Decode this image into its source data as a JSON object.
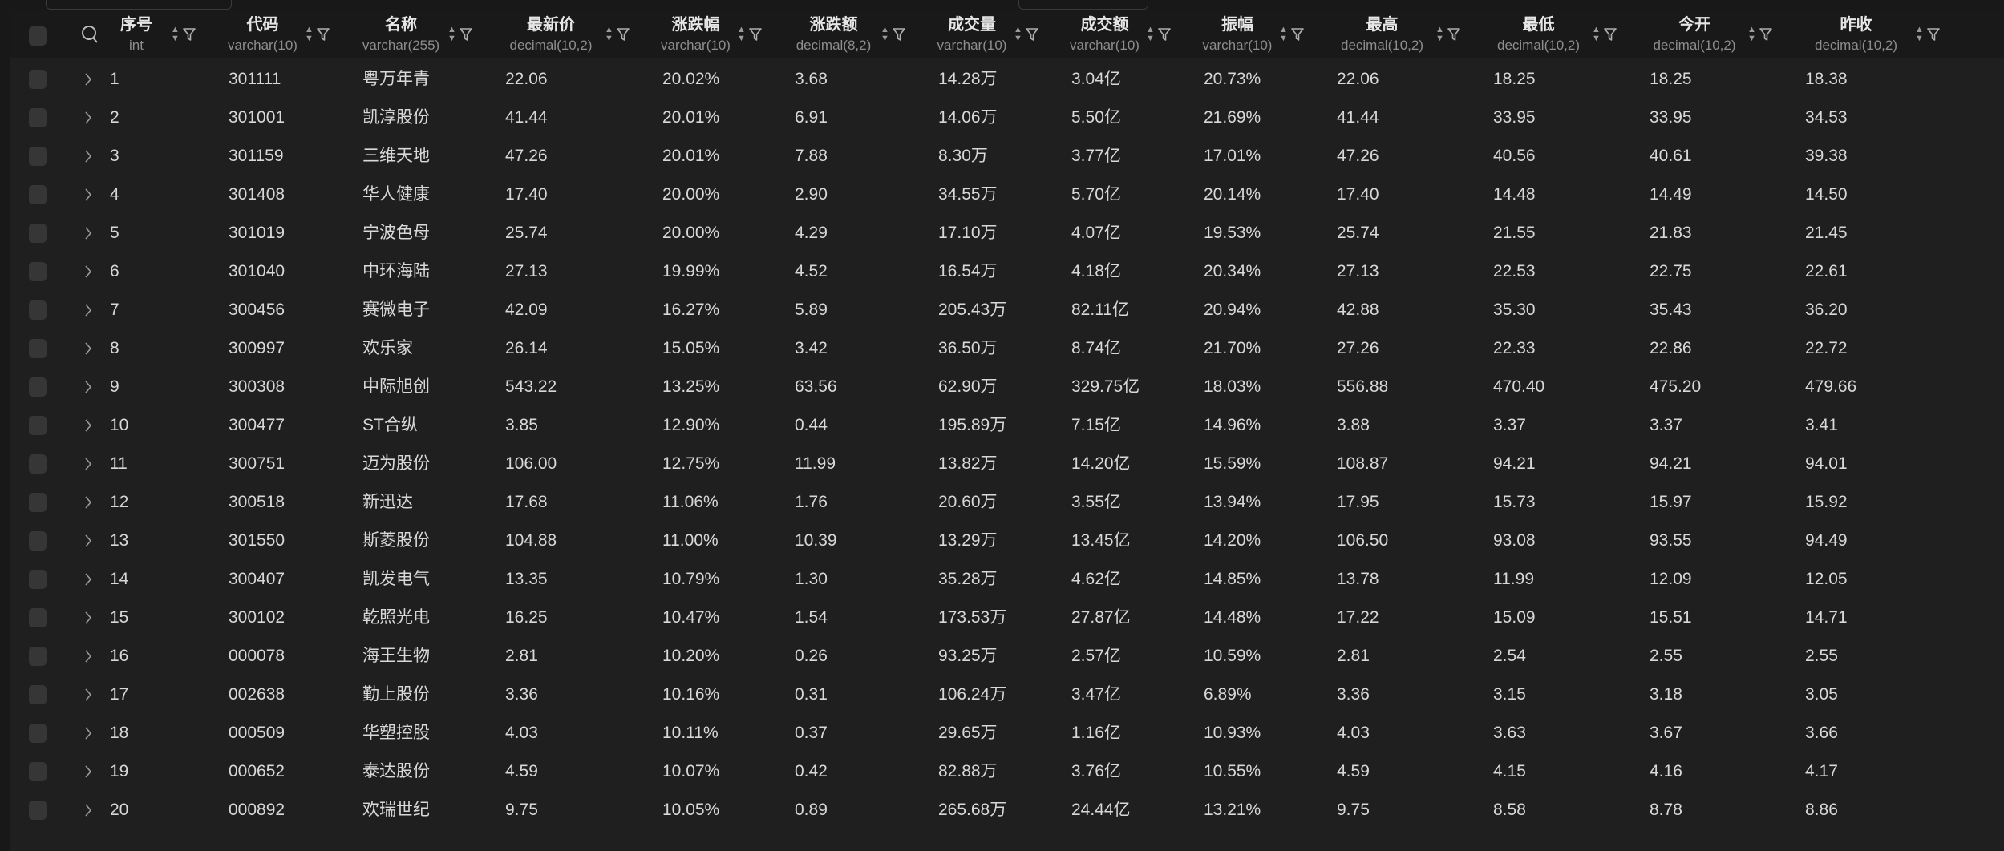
{
  "theme": {
    "background": "#1f1f1f",
    "header_background": "#191919",
    "text": "#d8d8d8",
    "type_text": "#8d8d8d"
  },
  "icons": {
    "search": "search-icon",
    "sort": "sort-arrows-icon",
    "filter": "filter-icon",
    "expand": "chevron-right-icon",
    "select": "checkbox"
  },
  "columns": [
    {
      "title": "序号",
      "type": "int"
    },
    {
      "title": "代码",
      "type": "varchar(10)"
    },
    {
      "title": "名称",
      "type": "varchar(255)"
    },
    {
      "title": "最新价",
      "type": "decimal(10,2)"
    },
    {
      "title": "涨跌幅",
      "type": "varchar(10)"
    },
    {
      "title": "涨跌额",
      "type": "decimal(8,2)"
    },
    {
      "title": "成交量",
      "type": "varchar(10)"
    },
    {
      "title": "成交额",
      "type": "varchar(10)"
    },
    {
      "title": "振幅",
      "type": "varchar(10)"
    },
    {
      "title": "最高",
      "type": "decimal(10,2)"
    },
    {
      "title": "最低",
      "type": "decimal(10,2)"
    },
    {
      "title": "今开",
      "type": "decimal(10,2)"
    },
    {
      "title": "昨收",
      "type": "decimal(10,2)"
    }
  ],
  "rows": [
    [
      "1",
      "301111",
      "粤万年青",
      "22.06",
      "20.02%",
      "3.68",
      "14.28万",
      "3.04亿",
      "20.73%",
      "22.06",
      "18.25",
      "18.25",
      "18.38"
    ],
    [
      "2",
      "301001",
      "凯淳股份",
      "41.44",
      "20.01%",
      "6.91",
      "14.06万",
      "5.50亿",
      "21.69%",
      "41.44",
      "33.95",
      "33.95",
      "34.53"
    ],
    [
      "3",
      "301159",
      "三维天地",
      "47.26",
      "20.01%",
      "7.88",
      "8.30万",
      "3.77亿",
      "17.01%",
      "47.26",
      "40.56",
      "40.61",
      "39.38"
    ],
    [
      "4",
      "301408",
      "华人健康",
      "17.40",
      "20.00%",
      "2.90",
      "34.55万",
      "5.70亿",
      "20.14%",
      "17.40",
      "14.48",
      "14.49",
      "14.50"
    ],
    [
      "5",
      "301019",
      "宁波色母",
      "25.74",
      "20.00%",
      "4.29",
      "17.10万",
      "4.07亿",
      "19.53%",
      "25.74",
      "21.55",
      "21.83",
      "21.45"
    ],
    [
      "6",
      "301040",
      "中环海陆",
      "27.13",
      "19.99%",
      "4.52",
      "16.54万",
      "4.18亿",
      "20.34%",
      "27.13",
      "22.53",
      "22.75",
      "22.61"
    ],
    [
      "7",
      "300456",
      "赛微电子",
      "42.09",
      "16.27%",
      "5.89",
      "205.43万",
      "82.11亿",
      "20.94%",
      "42.88",
      "35.30",
      "35.43",
      "36.20"
    ],
    [
      "8",
      "300997",
      "欢乐家",
      "26.14",
      "15.05%",
      "3.42",
      "36.50万",
      "8.74亿",
      "21.70%",
      "27.26",
      "22.33",
      "22.86",
      "22.72"
    ],
    [
      "9",
      "300308",
      "中际旭创",
      "543.22",
      "13.25%",
      "63.56",
      "62.90万",
      "329.75亿",
      "18.03%",
      "556.88",
      "470.40",
      "475.20",
      "479.66"
    ],
    [
      "10",
      "300477",
      "ST合纵",
      "3.85",
      "12.90%",
      "0.44",
      "195.89万",
      "7.15亿",
      "14.96%",
      "3.88",
      "3.37",
      "3.37",
      "3.41"
    ],
    [
      "11",
      "300751",
      "迈为股份",
      "106.00",
      "12.75%",
      "11.99",
      "13.82万",
      "14.20亿",
      "15.59%",
      "108.87",
      "94.21",
      "94.21",
      "94.01"
    ],
    [
      "12",
      "300518",
      "新迅达",
      "17.68",
      "11.06%",
      "1.76",
      "20.60万",
      "3.55亿",
      "13.94%",
      "17.95",
      "15.73",
      "15.97",
      "15.92"
    ],
    [
      "13",
      "301550",
      "斯菱股份",
      "104.88",
      "11.00%",
      "10.39",
      "13.29万",
      "13.45亿",
      "14.20%",
      "106.50",
      "93.08",
      "93.55",
      "94.49"
    ],
    [
      "14",
      "300407",
      "凯发电气",
      "13.35",
      "10.79%",
      "1.30",
      "35.28万",
      "4.62亿",
      "14.85%",
      "13.78",
      "11.99",
      "12.09",
      "12.05"
    ],
    [
      "15",
      "300102",
      "乾照光电",
      "16.25",
      "10.47%",
      "1.54",
      "173.53万",
      "27.87亿",
      "14.48%",
      "17.22",
      "15.09",
      "15.51",
      "14.71"
    ],
    [
      "16",
      "000078",
      "海王生物",
      "2.81",
      "10.20%",
      "0.26",
      "93.25万",
      "2.57亿",
      "10.59%",
      "2.81",
      "2.54",
      "2.55",
      "2.55"
    ],
    [
      "17",
      "002638",
      "勤上股份",
      "3.36",
      "10.16%",
      "0.31",
      "106.24万",
      "3.47亿",
      "6.89%",
      "3.36",
      "3.15",
      "3.18",
      "3.05"
    ],
    [
      "18",
      "000509",
      "华塑控股",
      "4.03",
      "10.11%",
      "0.37",
      "29.65万",
      "1.16亿",
      "10.93%",
      "4.03",
      "3.63",
      "3.67",
      "3.66"
    ],
    [
      "19",
      "000652",
      "泰达股份",
      "4.59",
      "10.07%",
      "0.42",
      "82.88万",
      "3.76亿",
      "10.55%",
      "4.59",
      "4.15",
      "4.16",
      "4.17"
    ],
    [
      "20",
      "000892",
      "欢瑞世纪",
      "9.75",
      "10.05%",
      "0.89",
      "265.68万",
      "24.44亿",
      "13.21%",
      "9.75",
      "8.58",
      "8.78",
      "8.86"
    ]
  ]
}
